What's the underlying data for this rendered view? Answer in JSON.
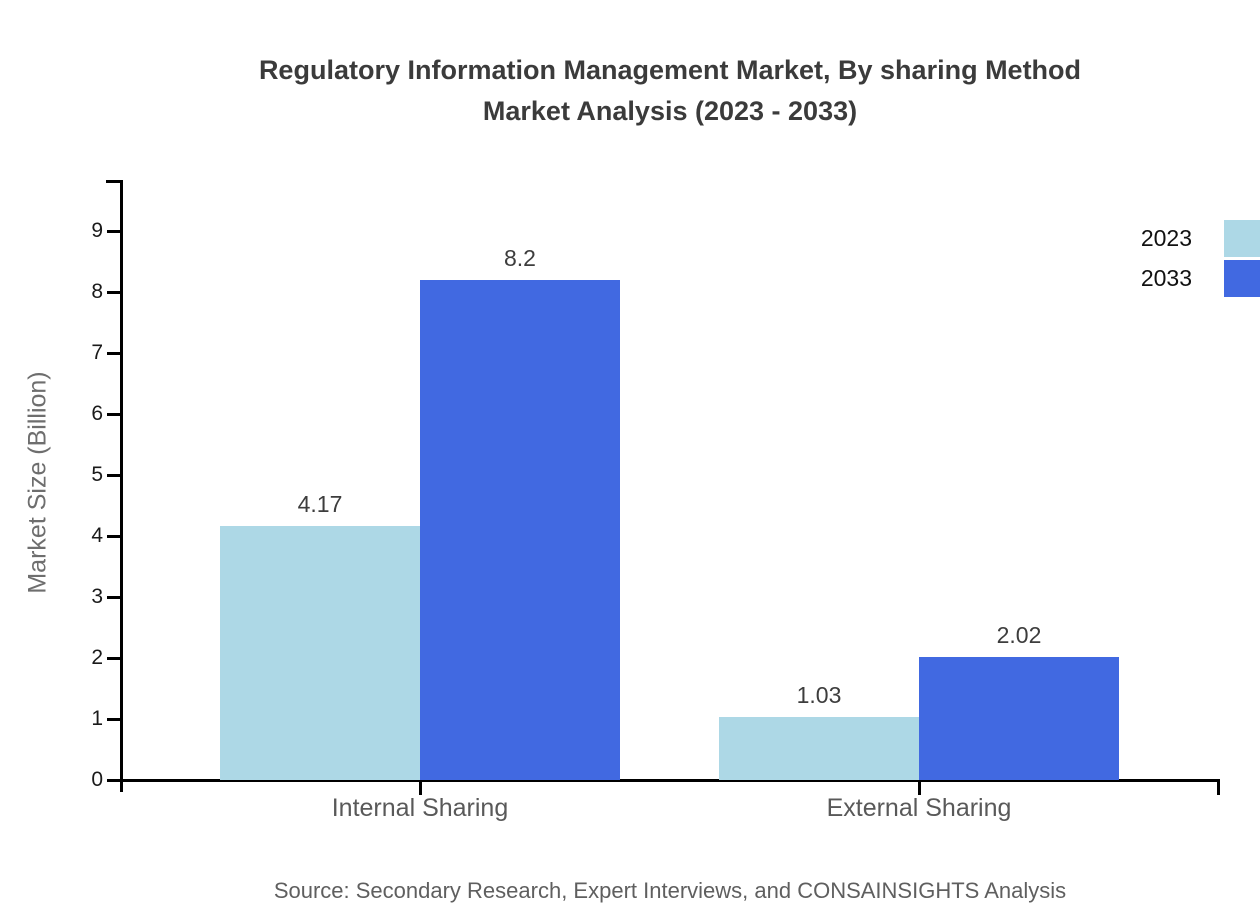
{
  "title": {
    "line1": "Regulatory Information Management Market, By sharing Method",
    "line2": "Market Analysis (2023 - 2033)"
  },
  "legend": {
    "position": "top-right",
    "items": [
      {
        "label": "2023",
        "color": "#ADD8E6"
      },
      {
        "label": "2033",
        "color": "#4169E1"
      }
    ]
  },
  "axes": {
    "y_title": "Market Size (Billion)",
    "y_ticks": [
      0,
      1,
      2,
      3,
      4,
      5,
      6,
      7,
      8,
      9
    ],
    "axis_color": "#000000"
  },
  "source_note": "Source: Secondary Research, Expert Interviews, and CONSAINSIGHTS Analysis",
  "chart_data": {
    "type": "bar",
    "title": "Regulatory Information Management Market, By sharing Method Market Analysis (2023 - 2033)",
    "categories": [
      "Internal Sharing",
      "External Sharing"
    ],
    "series": [
      {
        "name": "2023",
        "color": "#ADD8E6",
        "values": [
          4.17,
          1.03
        ],
        "labels": [
          "4.17",
          "1.03"
        ]
      },
      {
        "name": "2033",
        "color": "#4169E1",
        "values": [
          8.2,
          2.02
        ],
        "labels": [
          "8.2",
          "2.02"
        ]
      }
    ],
    "xlabel": "",
    "ylabel": "Market Size (Billion)",
    "ylim": [
      0,
      9
    ],
    "grid": false,
    "legend_position": "top-right",
    "source": "Source: Secondary Research, Expert Interviews, and CONSAINSIGHTS Analysis"
  }
}
